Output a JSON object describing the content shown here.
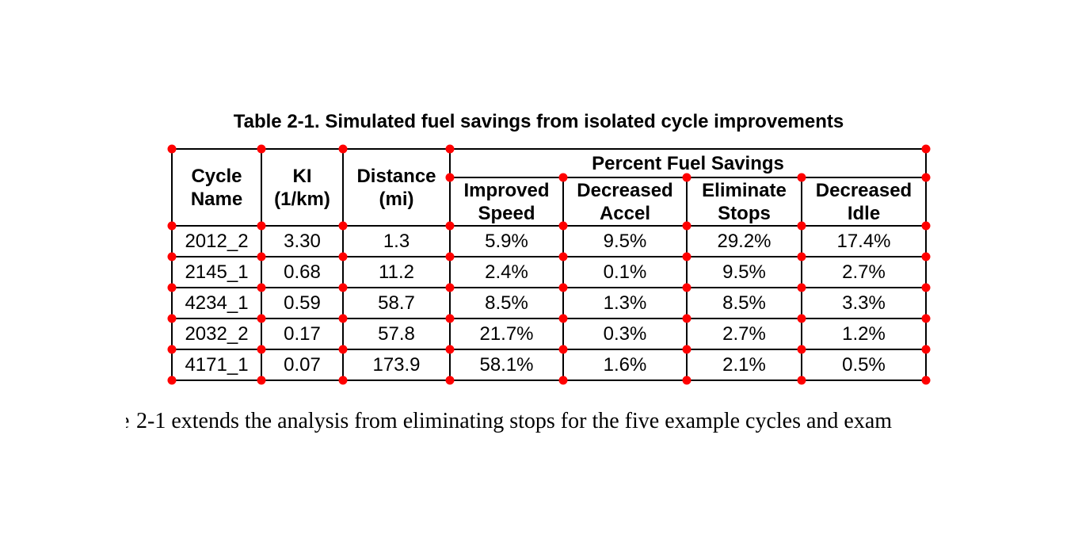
{
  "table": {
    "caption": "Table 2-1. Simulated fuel savings from isolated cycle improvements",
    "group_header": "Percent Fuel Savings",
    "row_headers": [
      "Cycle\nName",
      "KI\n(1/km)",
      "Distance\n(mi)"
    ],
    "sub_headers": [
      "Improved\nSpeed",
      "Decreased\nAccel",
      "Eliminate\nStops",
      "Decreased\nIdle"
    ],
    "rows": [
      [
        "2012_2",
        "3.30",
        "1.3",
        "5.9%",
        "9.5%",
        "29.2%",
        "17.4%"
      ],
      [
        "2145_1",
        "0.68",
        "11.2",
        "2.4%",
        "0.1%",
        "9.5%",
        "2.7%"
      ],
      [
        "4234_1",
        "0.59",
        "58.7",
        "8.5%",
        "1.3%",
        "8.5%",
        "3.3%"
      ],
      [
        "2032_2",
        "0.17",
        "57.8",
        "21.7%",
        "0.3%",
        "2.7%",
        "1.2%"
      ],
      [
        "4171_1",
        "0.07",
        "173.9",
        "58.1%",
        "1.6%",
        "2.1%",
        "0.5%"
      ]
    ]
  },
  "body_text": {
    "left_fragment": "e",
    "line": "2-1 extends the analysis from eliminating stops for the five example cycles and exam"
  },
  "annotation": {
    "dot_color": "#ff0000"
  }
}
